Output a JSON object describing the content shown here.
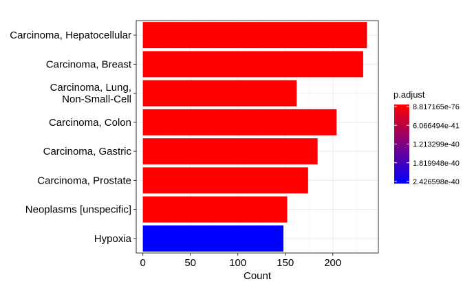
{
  "chart_data": {
    "type": "bar",
    "orientation": "horizontal",
    "categories": [
      "Carcinoma, Hepatocellular",
      "Carcinoma, Breast",
      "Carcinoma, Lung, Non-Small-Cell",
      "Carcinoma, Colon",
      "Carcinoma, Gastric",
      "Carcinoma, Prostate",
      "Neoplasms [unspecific]",
      "Hypoxia"
    ],
    "category_lines": [
      [
        "Carcinoma, Hepatocellular"
      ],
      [
        "Carcinoma, Breast"
      ],
      [
        "Carcinoma, Lung,",
        "Non-Small-Cell"
      ],
      [
        "Carcinoma, Colon"
      ],
      [
        "Carcinoma, Gastric"
      ],
      [
        "Carcinoma, Prostate"
      ],
      [
        "Neoplasms [unspecific]"
      ],
      [
        "Hypoxia"
      ]
    ],
    "values": [
      236,
      232,
      162,
      204,
      184,
      174,
      152,
      148
    ],
    "bar_colors": [
      "#FF0000",
      "#FF0000",
      "#FF0000",
      "#FF0000",
      "#FF0000",
      "#FF0000",
      "#FF0000",
      "#0000FF"
    ],
    "xlabel": "Count",
    "ylabel": "",
    "title": "",
    "xlim": [
      -7,
      248
    ],
    "xticks": [
      0,
      50,
      100,
      150,
      200
    ],
    "grid": true,
    "legend": {
      "title": "p.adjust",
      "placement": "right",
      "labels": [
        "8.817165e-76",
        "6.066494e-41",
        "1.213299e-40",
        "1.819948e-40",
        "2.426598e-40"
      ],
      "color_high": "#FF0000",
      "color_low": "#0000FF"
    }
  }
}
